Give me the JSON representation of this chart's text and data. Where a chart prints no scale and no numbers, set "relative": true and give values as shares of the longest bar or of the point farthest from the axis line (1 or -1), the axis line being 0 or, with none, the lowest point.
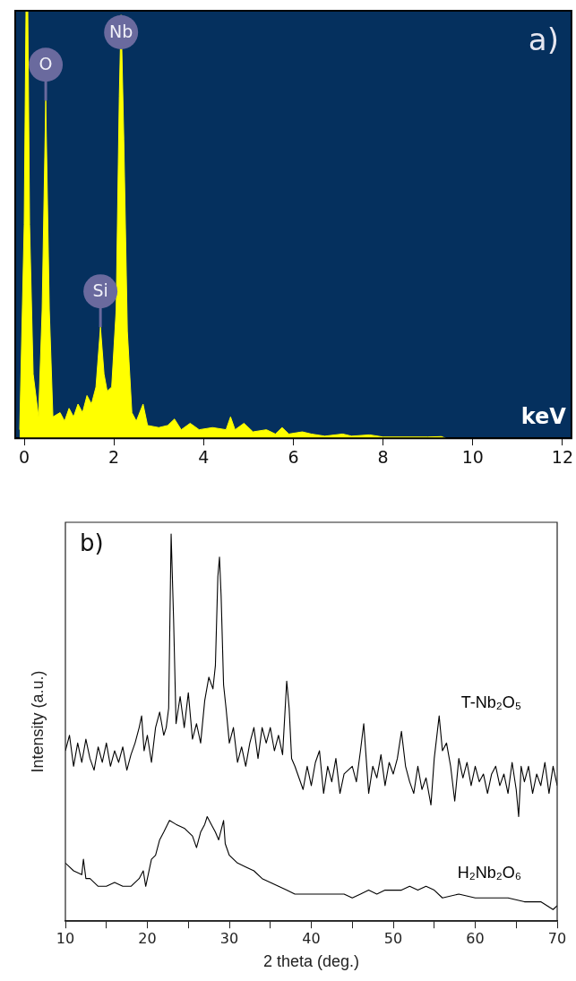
{
  "chart_data": [
    {
      "type": "area",
      "title": "a)",
      "xlabel": "keV",
      "relative": true,
      "grid": false,
      "legend": false,
      "marker": "none",
      "xlim": [
        -0.2,
        12.2
      ],
      "xticks": [
        0,
        2,
        4,
        6,
        8,
        10,
        12
      ],
      "x": [
        -0.1,
        0.0,
        0.04,
        0.08,
        0.12,
        0.2,
        0.32,
        0.4,
        0.48,
        0.56,
        0.64,
        0.8,
        0.9,
        1.0,
        1.1,
        1.2,
        1.3,
        1.4,
        1.5,
        1.6,
        1.7,
        1.78,
        1.85,
        1.95,
        2.05,
        2.12,
        2.16,
        2.22,
        2.3,
        2.4,
        2.5,
        2.65,
        2.75,
        3.0,
        3.2,
        3.35,
        3.5,
        3.7,
        3.9,
        4.2,
        4.5,
        4.6,
        4.7,
        4.9,
        5.1,
        5.4,
        5.6,
        5.75,
        5.9,
        6.2,
        6.4,
        6.7,
        7.1,
        7.3,
        7.7,
        8.0,
        9.0,
        9.3,
        9.4
      ],
      "series": [
        {
          "color": "#ffff00",
          "values": [
            0.02,
            0.5,
            1,
            1,
            0.5,
            0.15,
            0.05,
            0.3,
            0.79,
            0.3,
            0.05,
            0.06,
            0.04,
            0.07,
            0.05,
            0.08,
            0.06,
            0.1,
            0.08,
            0.12,
            0.26,
            0.15,
            0.11,
            0.12,
            0.3,
            0.8,
            0.99,
            0.7,
            0.25,
            0.06,
            0.04,
            0.08,
            0.03,
            0.025,
            0.03,
            0.045,
            0.02,
            0.035,
            0.02,
            0.025,
            0.02,
            0.05,
            0.02,
            0.035,
            0.015,
            0.02,
            0.01,
            0.025,
            0.01,
            0.015,
            0.01,
            0.005,
            0.01,
            0.005,
            0.008,
            0.003,
            0.003,
            0.004,
            0
          ]
        }
      ],
      "annotations": [
        {
          "text": "O",
          "x": 0.48,
          "y": 0.79
        },
        {
          "text": "Nb",
          "x": 2.16,
          "y": 0.99
        },
        {
          "text": "Si",
          "x": 1.7,
          "y": 0.26
        }
      ]
    },
    {
      "type": "line",
      "title": "b)",
      "xlabel": "2 theta (deg.)",
      "ylabel": "Intensity (a.u.)",
      "relative": true,
      "grid": false,
      "legend": false,
      "marker": "none",
      "xlim": [
        10,
        70
      ],
      "xticks": [
        10,
        {
          "value": 15,
          "label": null
        },
        20,
        {
          "value": 25,
          "label": null
        },
        30,
        {
          "value": 35,
          "label": null
        },
        40,
        {
          "value": 45,
          "label": null
        },
        50,
        {
          "value": 55,
          "label": null
        },
        60,
        {
          "value": 65,
          "label": null
        },
        70
      ],
      "series": [
        {
          "name": "T-Nb₂O₅",
          "color": "#000000",
          "x": [
            10,
            10.5,
            11,
            11.5,
            12,
            12.5,
            13,
            13.5,
            14,
            14.5,
            15,
            15.5,
            16,
            16.5,
            17,
            17.5,
            18,
            18.5,
            19,
            19.3,
            19.6,
            20,
            20.5,
            21,
            21.5,
            22,
            22.3,
            22.6,
            22.9,
            23.2,
            23.5,
            24,
            24.5,
            25,
            25.5,
            26,
            26.5,
            27,
            27.5,
            28,
            28.3,
            28.6,
            28.8,
            29,
            29.3,
            29.6,
            30,
            30.5,
            31,
            31.5,
            32,
            32.5,
            33,
            33.5,
            34,
            34.5,
            35,
            35.5,
            36,
            36.5,
            37,
            37.3,
            37.6,
            38,
            38.5,
            39,
            39.5,
            40,
            40.5,
            41,
            41.5,
            42,
            42.5,
            43,
            43.5,
            44,
            45,
            45.5,
            46,
            46.4,
            46.8,
            47,
            47.5,
            48,
            48.5,
            49,
            49.5,
            50,
            50.5,
            51,
            51.5,
            52,
            52.5,
            53,
            53.5,
            54,
            54.6,
            55,
            55.6,
            56,
            56.5,
            57,
            57.5,
            58,
            58.5,
            59,
            59.5,
            60,
            60.5,
            61,
            61.5,
            62,
            62.5,
            63,
            63.5,
            64,
            64.5,
            65,
            65.3,
            65.6,
            66,
            66.5,
            67,
            67.5,
            68,
            68.5,
            69,
            69.5,
            70
          ],
          "values": [
            0.44,
            0.48,
            0.4,
            0.46,
            0.41,
            0.47,
            0.42,
            0.39,
            0.45,
            0.41,
            0.46,
            0.4,
            0.44,
            0.41,
            0.45,
            0.39,
            0.43,
            0.46,
            0.5,
            0.53,
            0.44,
            0.48,
            0.41,
            0.5,
            0.54,
            0.48,
            0.5,
            0.55,
            1,
            0.78,
            0.51,
            0.58,
            0.5,
            0.59,
            0.47,
            0.51,
            0.46,
            0.57,
            0.63,
            0.6,
            0.66,
            0.89,
            0.94,
            0.84,
            0.61,
            0.55,
            0.46,
            0.5,
            0.41,
            0.45,
            0.4,
            0.46,
            0.5,
            0.42,
            0.5,
            0.46,
            0.5,
            0.44,
            0.48,
            0.43,
            0.62,
            0.55,
            0.42,
            0.4,
            0.37,
            0.34,
            0.4,
            0.35,
            0.41,
            0.44,
            0.33,
            0.4,
            0.36,
            0.42,
            0.33,
            0.38,
            0.4,
            0.36,
            0.44,
            0.51,
            0.39,
            0.33,
            0.4,
            0.37,
            0.43,
            0.35,
            0.41,
            0.38,
            0.42,
            0.49,
            0.4,
            0.36,
            0.33,
            0.4,
            0.34,
            0.37,
            0.3,
            0.42,
            0.53,
            0.44,
            0.46,
            0.4,
            0.31,
            0.42,
            0.37,
            0.41,
            0.35,
            0.4,
            0.36,
            0.38,
            0.33,
            0.38,
            0.4,
            0.35,
            0.38,
            0.33,
            0.41,
            0.34,
            0.27,
            0.4,
            0.36,
            0.4,
            0.33,
            0.38,
            0.35,
            0.41,
            0.33,
            0.4,
            0.35
          ]
        },
        {
          "name": "H₂Nb₂O₆",
          "color": "#000000",
          "x": [
            10,
            11,
            12,
            12.2,
            12.5,
            13,
            14,
            15,
            16,
            17,
            18,
            19,
            19.5,
            19.8,
            20.5,
            21,
            21.5,
            22,
            22.7,
            23.5,
            24.5,
            25.5,
            26,
            26.5,
            27,
            27.3,
            27.8,
            28.3,
            28.7,
            29.3,
            29.5,
            30,
            31,
            32,
            33,
            34,
            35,
            36,
            37,
            38,
            39,
            40,
            42,
            44,
            45,
            46,
            47,
            48,
            49,
            50,
            51,
            52,
            53,
            54,
            55,
            56,
            58,
            60,
            62,
            64,
            66,
            68,
            69.5,
            70
          ],
          "values": [
            0.15,
            0.13,
            0.12,
            0.16,
            0.11,
            0.11,
            0.09,
            0.09,
            0.1,
            0.09,
            0.09,
            0.11,
            0.13,
            0.09,
            0.16,
            0.17,
            0.21,
            0.23,
            0.26,
            0.25,
            0.24,
            0.22,
            0.19,
            0.23,
            0.25,
            0.27,
            0.25,
            0.23,
            0.21,
            0.26,
            0.2,
            0.17,
            0.15,
            0.14,
            0.13,
            0.11,
            0.1,
            0.09,
            0.08,
            0.07,
            0.07,
            0.07,
            0.07,
            0.07,
            0.06,
            0.07,
            0.08,
            0.07,
            0.08,
            0.08,
            0.08,
            0.09,
            0.08,
            0.09,
            0.08,
            0.06,
            0.07,
            0.06,
            0.06,
            0.06,
            0.05,
            0.05,
            0.03,
            0.04
          ]
        }
      ]
    }
  ]
}
